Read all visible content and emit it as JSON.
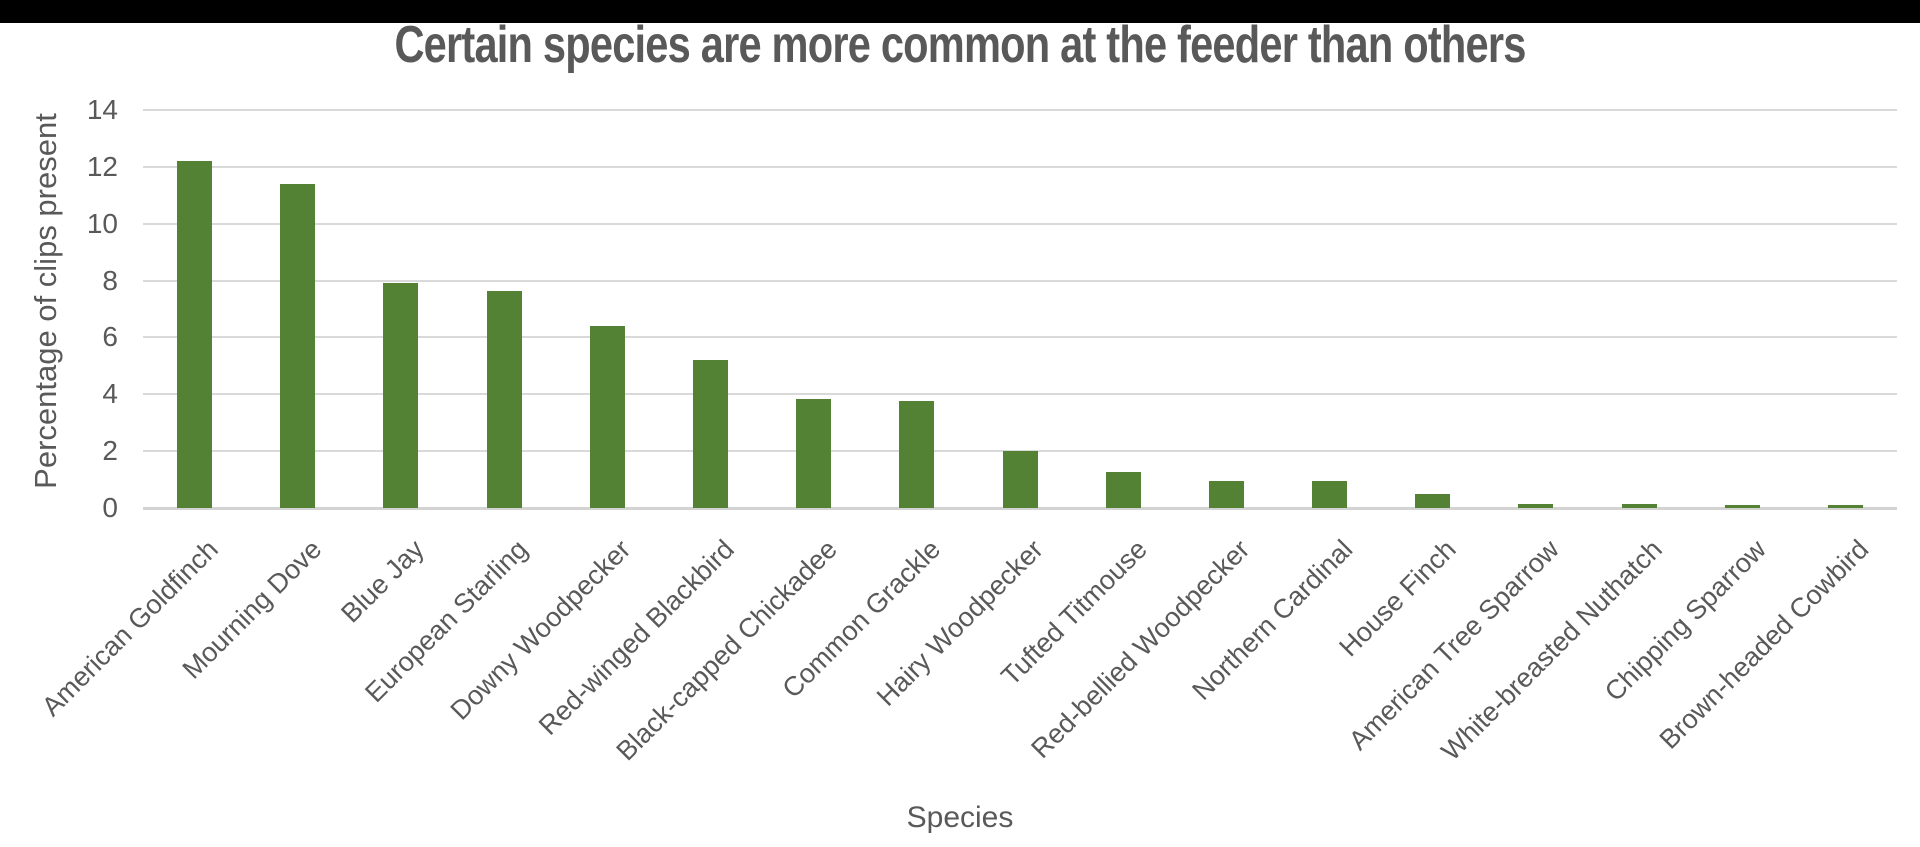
{
  "window": {
    "top_strip_color": "#000000",
    "background_color": "#FFFFFF"
  },
  "colors": {
    "bar": "#548235",
    "title_text": "#595959",
    "axis_text": "#595959",
    "gridline": "#D9D9D9",
    "axis_line": "#D3D3D3"
  },
  "chart_data": {
    "type": "bar",
    "title": "Certain species are more common at the feeder than others",
    "xlabel": "Species",
    "ylabel": "Percentage of clips present",
    "categories": [
      "American Goldfinch",
      "Mourning Dove",
      "Blue Jay",
      "European Starling",
      "Downy Woodpecker",
      "Red-winged Blackbird",
      "Black-capped Chickadee",
      "Common Grackle",
      "Hairy Woodpecker",
      "Tufted Titmouse",
      "Red-bellied Woodpecker",
      "Northern Cardinal",
      "House Finch",
      "American Tree Sparrow",
      "White-breasted Nuthatch",
      "Chipping Sparrow",
      "Brown-headed Cowbird"
    ],
    "values": [
      12.2,
      11.4,
      7.9,
      7.65,
      6.4,
      5.2,
      3.85,
      3.75,
      2.0,
      1.25,
      0.95,
      0.95,
      0.5,
      0.15,
      0.15,
      0.12,
      0.1
    ],
    "ylim": [
      0,
      14
    ],
    "yticks": [
      0,
      2,
      4,
      6,
      8,
      10,
      12,
      14
    ],
    "grid": "horizontal",
    "legend": "none",
    "x_tick_rotation_deg": 45,
    "bar_color": "#548235"
  }
}
